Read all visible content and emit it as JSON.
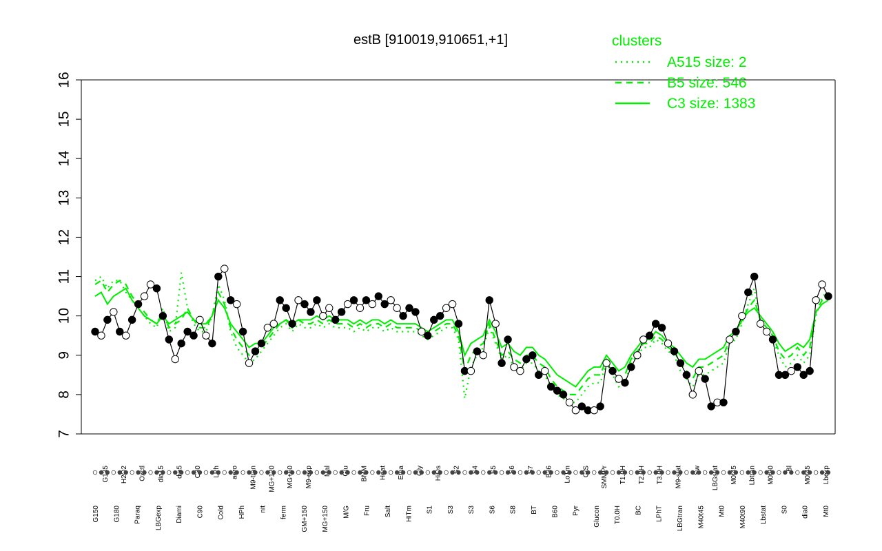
{
  "chart_data": {
    "type": "line",
    "title": "estB [910019,910651,+1]",
    "xlabel": "",
    "ylabel": "",
    "ylim": [
      7,
      16
    ],
    "yticks": [
      7,
      8,
      9,
      10,
      11,
      12,
      13,
      14,
      15,
      16
    ],
    "legend": {
      "title": "clusters",
      "placement": "top-right",
      "entries": [
        {
          "label": "A515 size: 2",
          "style": "dotted"
        },
        {
          "label": "B5 size: 546",
          "style": "dashed"
        },
        {
          "label": "C3 size: 1383",
          "style": "solid"
        }
      ]
    },
    "colors": {
      "cluster_lines": "#00ee00",
      "points": "#000000",
      "points_open": "#ffffff"
    },
    "tick_labels_row1": [
      "G135",
      "H2O2",
      "Oxctl",
      "dia15",
      "dia5",
      "C30",
      "LPh",
      "aero",
      "M9-tran",
      "MG+120",
      "MG+60",
      "M9-exp",
      "Mal",
      "Glu",
      "BMM",
      "Heat",
      "Etha",
      "Gly",
      "HiOs",
      "S2",
      "S4",
      "S5",
      "S6",
      "S7",
      "B36",
      "LoTm",
      "G/S",
      "SMMPr",
      "T1.0H",
      "T2.0H",
      "T3.0H",
      "M9-stat",
      "Sw",
      "LBGstat",
      "M0t45",
      "Lbtran",
      "M0t90",
      "Bl",
      "M0t45",
      "Lbexp"
    ],
    "tick_labels_row2": [
      "G150",
      "G180",
      "Paraq",
      "LBGexp",
      "Diami",
      "C90",
      "Cold",
      "HPh",
      "nit",
      "ferm",
      "GM+150",
      "MG+150",
      "M/G",
      "Fru",
      "Salt",
      "HiTm",
      "S1",
      "S3",
      "S3",
      "S6",
      "S8",
      "BT",
      "B60",
      "Pyr",
      "Glucon",
      "T0.0H",
      "BC",
      "LPhT",
      "LBGtran",
      "M40t45",
      "Mt0",
      "M40t90",
      "Lbstat",
      "S0",
      "dia0",
      "Mt0"
    ],
    "x": [
      1,
      2,
      3,
      4,
      5,
      6,
      7,
      8,
      9,
      10,
      11,
      12,
      13,
      14,
      15,
      16,
      17,
      18,
      19,
      20,
      21,
      22,
      23,
      24,
      25,
      26,
      27,
      28,
      29,
      30,
      31,
      32,
      33,
      34,
      35,
      36,
      37,
      38,
      39,
      40,
      41,
      42,
      43,
      44,
      45,
      46,
      47,
      48,
      49,
      50,
      51,
      52,
      53,
      54,
      55,
      56,
      57,
      58,
      59,
      60,
      61,
      62,
      63,
      64,
      65,
      66,
      67,
      68,
      69,
      70,
      71,
      72,
      73,
      74,
      75,
      76,
      77,
      78,
      79,
      80,
      81,
      82,
      83,
      84,
      85,
      86,
      87,
      88,
      89,
      90,
      91,
      92,
      93,
      94,
      95,
      96,
      97,
      98,
      99,
      100,
      101,
      102,
      103,
      104,
      105,
      106,
      107,
      108,
      109,
      110,
      111,
      112,
      113,
      114,
      115,
      116,
      117,
      118,
      119,
      120
    ],
    "series": [
      {
        "name": "",
        "style": "line-with-points",
        "values": [
          9.6,
          9.5,
          9.9,
          10.1,
          9.6,
          9.5,
          9.9,
          10.3,
          10.5,
          10.8,
          10.7,
          10.0,
          9.4,
          8.9,
          9.3,
          9.6,
          9.5,
          9.9,
          9.5,
          9.3,
          11.0,
          11.2,
          10.4,
          10.3,
          9.6,
          8.8,
          9.1,
          9.3,
          9.7,
          9.8,
          10.4,
          10.2,
          9.8,
          10.4,
          10.3,
          10.1,
          10.4,
          10.0,
          10.2,
          9.9,
          10.1,
          10.3,
          10.4,
          10.2,
          10.4,
          10.3,
          10.5,
          10.3,
          10.4,
          10.2,
          10.0,
          10.2,
          10.1,
          9.6,
          9.5,
          9.9,
          10.0,
          10.2,
          10.3,
          9.8,
          8.6,
          8.6,
          9.1,
          9.0,
          10.4,
          9.8,
          8.8,
          9.4,
          8.7,
          8.6,
          8.9,
          9.0,
          8.5,
          8.6,
          8.2,
          8.1,
          8.0,
          7.8,
          7.6,
          7.7,
          7.6,
          7.6,
          7.7,
          8.8,
          8.6,
          8.4,
          8.3,
          8.7,
          9.0,
          9.4,
          9.5,
          9.8,
          9.7,
          9.3,
          9.1,
          8.8,
          8.5,
          8.0,
          8.6,
          8.4,
          7.7,
          7.8,
          7.8,
          9.4,
          9.6,
          10.0,
          10.6,
          11.0,
          9.8,
          9.6,
          9.4,
          8.5,
          8.5,
          8.6,
          8.7,
          8.5,
          8.6,
          10.4,
          10.8,
          10.5
        ]
      },
      {
        "name": "",
        "style": "solid",
        "values": [
          10.5,
          10.6,
          10.3,
          10.5,
          10.6,
          10.7,
          10.4,
          10.2,
          10.0,
          9.9,
          9.8,
          10.0,
          9.8,
          9.9,
          10.0,
          10.1,
          9.9,
          9.8,
          9.8,
          10.0,
          10.4,
          10.2,
          9.8,
          9.6,
          9.4,
          9.2,
          9.3,
          9.3,
          9.5,
          9.7,
          9.8,
          9.9,
          9.8,
          9.9,
          9.9,
          9.9,
          10.0,
          9.9,
          10.0,
          9.9,
          9.9,
          9.9,
          9.8,
          9.9,
          9.8,
          9.9,
          9.9,
          9.8,
          9.9,
          9.8,
          9.8,
          9.8,
          9.8,
          9.7,
          9.6,
          9.7,
          9.8,
          9.9,
          9.9,
          9.6,
          9.0,
          9.3,
          9.4,
          9.5,
          9.9,
          9.6,
          9.2,
          9.3,
          9.1,
          9.0,
          9.2,
          9.2,
          9.0,
          8.9,
          8.7,
          8.5,
          8.4,
          8.3,
          8.2,
          8.4,
          8.6,
          8.7,
          8.7,
          9.0,
          8.8,
          8.6,
          8.7,
          9.0,
          9.2,
          9.4,
          9.4,
          9.6,
          9.5,
          9.3,
          9.2,
          9.0,
          8.8,
          8.7,
          8.9,
          8.9,
          9.0,
          9.1,
          9.2,
          9.5,
          9.6,
          9.9,
          10.1,
          10.2,
          10.0,
          9.8,
          9.6,
          9.3,
          9.1,
          9.2,
          9.3,
          9.2,
          9.4,
          10.1,
          10.3,
          10.4
        ]
      },
      {
        "name": "",
        "style": "dashed",
        "values": [
          10.8,
          10.9,
          10.6,
          10.8,
          10.9,
          10.8,
          10.5,
          10.3,
          10.1,
          9.9,
          9.8,
          10.1,
          9.7,
          9.8,
          9.9,
          10.2,
          9.9,
          9.7,
          9.7,
          10.0,
          10.6,
          10.3,
          9.7,
          9.4,
          9.2,
          9.0,
          9.1,
          9.2,
          9.4,
          9.6,
          9.8,
          9.9,
          9.7,
          9.9,
          9.8,
          9.8,
          9.9,
          9.8,
          9.9,
          9.8,
          9.8,
          9.8,
          9.7,
          9.8,
          9.7,
          9.8,
          9.8,
          9.7,
          9.8,
          9.7,
          9.7,
          9.7,
          9.7,
          9.6,
          9.5,
          9.6,
          9.7,
          9.8,
          9.8,
          9.5,
          8.6,
          9.0,
          9.2,
          9.3,
          9.8,
          9.4,
          9.0,
          9.1,
          8.9,
          8.8,
          9.0,
          9.0,
          8.8,
          8.7,
          8.4,
          8.2,
          8.1,
          8.0,
          8.0,
          8.2,
          8.4,
          8.5,
          8.5,
          8.9,
          8.7,
          8.4,
          8.5,
          8.9,
          9.1,
          9.3,
          9.3,
          9.5,
          9.4,
          9.2,
          9.1,
          8.8,
          8.6,
          8.4,
          8.7,
          8.7,
          8.8,
          8.9,
          9.0,
          9.4,
          9.5,
          9.9,
          10.2,
          10.4,
          9.9,
          9.7,
          9.5,
          9.1,
          8.9,
          9.0,
          9.2,
          9.0,
          9.2,
          10.1,
          10.4,
          10.5
        ]
      },
      {
        "name": "",
        "style": "dotted",
        "values": [
          10.9,
          11.0,
          10.7,
          10.9,
          10.9,
          10.6,
          10.4,
          10.2,
          10.0,
          9.8,
          9.7,
          10.2,
          9.6,
          9.7,
          11.1,
          10.2,
          9.8,
          9.6,
          9.6,
          10.0,
          10.8,
          10.4,
          9.6,
          9.2,
          9.0,
          8.8,
          8.9,
          9.1,
          9.3,
          9.5,
          9.7,
          9.8,
          9.6,
          9.8,
          9.7,
          9.7,
          9.8,
          9.7,
          9.8,
          9.7,
          9.7,
          9.7,
          9.6,
          9.7,
          9.6,
          9.7,
          9.7,
          9.6,
          9.7,
          9.6,
          9.6,
          9.6,
          9.6,
          9.5,
          9.4,
          9.5,
          9.6,
          9.7,
          9.7,
          9.4,
          7.9,
          8.7,
          9.0,
          9.2,
          9.7,
          9.3,
          8.9,
          9.0,
          8.7,
          8.6,
          8.8,
          8.8,
          8.6,
          8.5,
          8.2,
          8.0,
          7.9,
          7.8,
          7.8,
          8.0,
          8.2,
          8.3,
          8.3,
          8.8,
          8.5,
          8.2,
          8.3,
          8.8,
          9.0,
          9.2,
          9.2,
          9.4,
          9.3,
          9.1,
          9.0,
          8.6,
          8.4,
          8.2,
          8.5,
          8.5,
          8.6,
          8.7,
          8.8,
          9.3,
          9.4,
          9.8,
          10.3,
          10.7,
          9.8,
          9.6,
          9.4,
          9.0,
          8.7,
          8.8,
          9.0,
          8.8,
          9.0,
          10.0,
          10.5,
          10.6
        ]
      }
    ]
  }
}
